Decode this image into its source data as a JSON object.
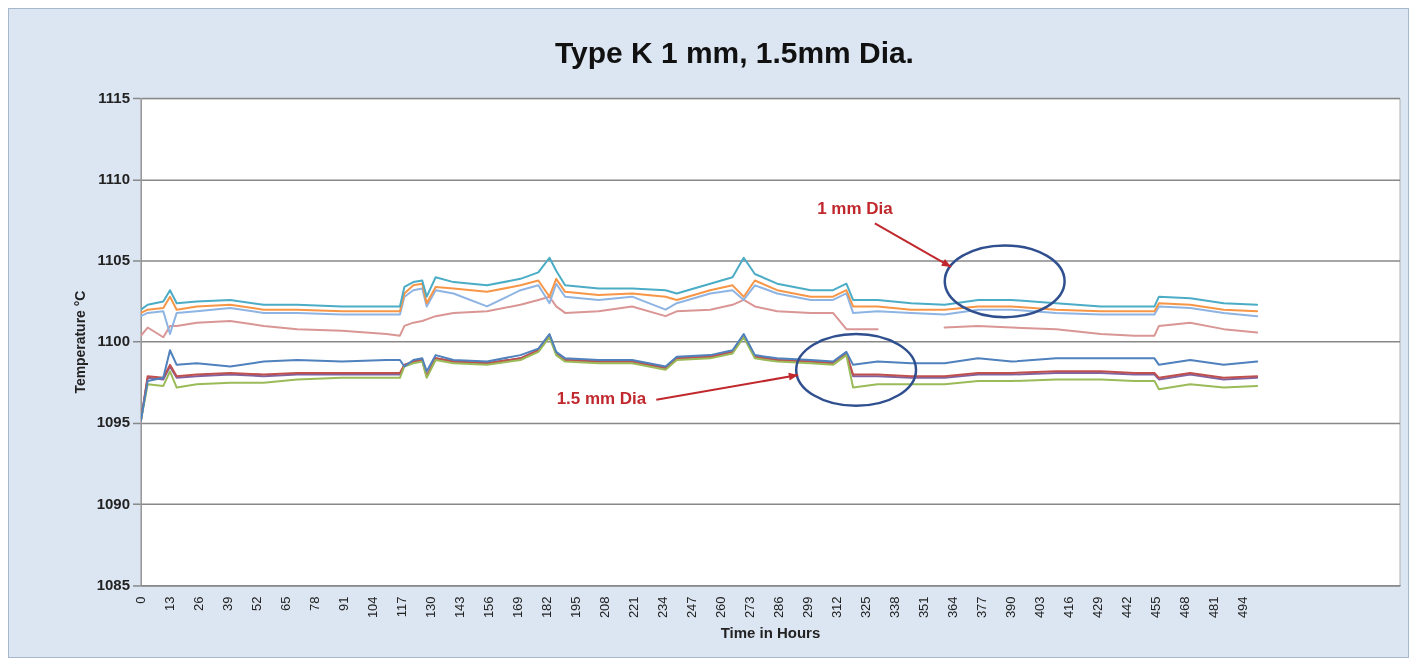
{
  "chart_data": {
    "type": "line",
    "title": "Type K 1 mm, 1.5mm Dia.",
    "xlabel": "Time in Hours",
    "ylabel": "Temperature °C",
    "x": [
      0,
      3,
      10,
      13,
      16,
      25,
      40,
      55,
      70,
      90,
      110,
      116,
      118,
      122,
      126,
      128,
      132,
      140,
      155,
      170,
      178,
      183,
      186,
      190,
      205,
      220,
      235,
      240,
      255,
      265,
      270,
      275,
      285,
      300,
      310,
      316,
      319,
      330,
      345,
      360,
      375,
      390,
      410,
      430,
      445,
      454,
      456,
      470,
      485,
      500
    ],
    "series": [
      {
        "color": "#4bacc6",
        "values": [
          1102.0,
          1102.3,
          1102.5,
          1103.2,
          1102.4,
          1102.5,
          1102.6,
          1102.3,
          1102.3,
          1102.2,
          1102.2,
          1102.2,
          1103.4,
          1103.7,
          1103.8,
          1102.8,
          1104.0,
          1103.7,
          1103.5,
          1103.9,
          1104.3,
          1105.2,
          1104.4,
          1103.5,
          1103.3,
          1103.3,
          1103.2,
          1103.0,
          1103.6,
          1104.0,
          1105.2,
          1104.2,
          1103.6,
          1103.2,
          1103.2,
          1103.6,
          1102.6,
          1102.6,
          1102.4,
          1102.3,
          1102.6,
          1102.6,
          1102.4,
          1102.2,
          1102.2,
          1102.2,
          1102.8,
          1102.7,
          1102.4,
          1102.3
        ]
      },
      {
        "color": "#f79646",
        "values": [
          1101.8,
          1102.0,
          1102.1,
          1102.8,
          1102.0,
          1102.2,
          1102.3,
          1102.0,
          1102.0,
          1101.9,
          1101.9,
          1101.9,
          1103.0,
          1103.5,
          1103.6,
          1102.4,
          1103.4,
          1103.3,
          1103.1,
          1103.5,
          1103.8,
          1102.8,
          1103.9,
          1103.1,
          1102.9,
          1103.0,
          1102.8,
          1102.6,
          1103.2,
          1103.5,
          1102.8,
          1103.8,
          1103.2,
          1102.8,
          1102.8,
          1103.2,
          1102.2,
          1102.2,
          1102.0,
          1102.0,
          1102.2,
          1102.2,
          1102.0,
          1101.9,
          1101.9,
          1101.9,
          1102.4,
          1102.3,
          1102.0,
          1101.9
        ]
      },
      {
        "color": "#8eb4e3",
        "values": [
          1101.6,
          1101.8,
          1101.9,
          1100.5,
          1101.8,
          1101.9,
          1102.1,
          1101.8,
          1101.8,
          1101.7,
          1101.7,
          1101.7,
          1102.8,
          1103.2,
          1103.3,
          1102.2,
          1103.2,
          1103.0,
          1102.2,
          1103.2,
          1103.5,
          1102.4,
          1103.6,
          1102.8,
          1102.6,
          1102.8,
          1102.0,
          1102.4,
          1103.0,
          1103.2,
          1102.6,
          1103.5,
          1103.0,
          1102.6,
          1102.6,
          1103.0,
          1101.8,
          1101.9,
          1101.8,
          1101.7,
          1102.0,
          1102.0,
          1101.8,
          1101.7,
          1101.7,
          1101.7,
          1102.2,
          1102.1,
          1101.8,
          1101.6
        ]
      },
      {
        "color": "#d99694",
        "values": [
          1100.4,
          1100.9,
          1100.3,
          1101.0,
          1101.0,
          1101.2,
          1101.3,
          1101.0,
          1100.8,
          1100.7,
          1100.5,
          1100.4,
          1101.0,
          1101.2,
          1101.3,
          1101.4,
          1101.6,
          1101.8,
          1101.9,
          1102.3,
          1102.6,
          1102.8,
          1102.2,
          1101.8,
          1101.9,
          1102.2,
          1101.6,
          1101.9,
          1102.0,
          1102.3,
          1102.6,
          1102.2,
          1101.9,
          1101.8,
          1101.8,
          1100.8,
          1100.8,
          1100.8,
          null,
          1100.9,
          1101.0,
          1100.9,
          1100.8,
          1100.5,
          1100.4,
          1100.4,
          1101.0,
          1101.2,
          1100.8,
          1100.6
        ]
      },
      {
        "color": "#4f81bd",
        "values": [
          1095.2,
          1097.6,
          1097.8,
          1099.5,
          1098.6,
          1098.7,
          1098.5,
          1098.8,
          1098.9,
          1098.8,
          1098.9,
          1098.9,
          1098.5,
          1098.9,
          1099.0,
          1098.2,
          1099.2,
          1098.9,
          1098.8,
          1099.2,
          1099.6,
          1100.5,
          1099.4,
          1099.0,
          1098.9,
          1098.9,
          1098.5,
          1099.1,
          1099.2,
          1099.5,
          1100.5,
          1099.2,
          1099.0,
          1098.9,
          1098.8,
          1099.4,
          1098.6,
          1098.8,
          1098.7,
          1098.7,
          1099.0,
          1098.8,
          1099.0,
          1099.0,
          1099.0,
          1099.0,
          1098.6,
          1098.9,
          1098.6,
          1098.8
        ]
      },
      {
        "color": "#9bbb59",
        "values": [
          1095.2,
          1097.4,
          1097.3,
          1098.2,
          1097.2,
          1097.4,
          1097.5,
          1097.5,
          1097.7,
          1097.8,
          1097.8,
          1097.8,
          1098.5,
          1098.7,
          1098.8,
          1097.8,
          1098.9,
          1098.7,
          1098.6,
          1098.9,
          1099.4,
          1100.3,
          1099.2,
          1098.8,
          1098.7,
          1098.7,
          1098.3,
          1098.9,
          1099.0,
          1099.3,
          1100.3,
          1099.0,
          1098.8,
          1098.7,
          1098.6,
          1099.2,
          1097.2,
          1097.4,
          1097.4,
          1097.4,
          1097.6,
          1097.6,
          1097.7,
          1097.7,
          1097.6,
          1097.6,
          1097.1,
          1097.4,
          1097.2,
          1097.3
        ]
      },
      {
        "color": "#c0504d",
        "values": [
          1095.2,
          1097.9,
          1097.8,
          1098.6,
          1097.9,
          1098.0,
          1098.1,
          1098.0,
          1098.1,
          1098.1,
          1098.1,
          1098.1,
          1098.6,
          1098.8,
          1098.9,
          1097.9,
          1099.0,
          1098.8,
          1098.7,
          1099.0,
          1099.5,
          1100.4,
          1099.3,
          1098.9,
          1098.8,
          1098.8,
          1098.4,
          1099.0,
          1099.1,
          1099.4,
          1100.4,
          1099.1,
          1098.9,
          1098.8,
          1098.7,
          1099.3,
          1098.0,
          1098.0,
          1097.9,
          1097.9,
          1098.1,
          1098.1,
          1098.2,
          1098.2,
          1098.1,
          1098.1,
          1097.8,
          1098.1,
          1097.8,
          1097.9
        ]
      },
      {
        "color": "#8064a2",
        "values": [
          1095.2,
          1097.8,
          1097.7,
          1098.5,
          1097.8,
          1097.9,
          1098.0,
          1097.9,
          1098.0,
          1098.0,
          1098.0,
          1098.0,
          1098.6,
          1098.8,
          1098.9,
          1097.9,
          1099.0,
          1098.8,
          1098.7,
          1099.0,
          1099.5,
          1100.4,
          1099.3,
          1098.9,
          1098.8,
          1098.8,
          1098.4,
          1099.0,
          1099.1,
          1099.4,
          1100.4,
          1099.1,
          1098.9,
          1098.8,
          1098.7,
          1099.3,
          1097.9,
          1097.9,
          1097.8,
          1097.8,
          1098.0,
          1098.0,
          1098.1,
          1098.1,
          1098.0,
          1098.0,
          1097.7,
          1098.0,
          1097.7,
          1097.8
        ]
      }
    ],
    "xlim": [
      0,
      564
    ],
    "xticks": [
      0,
      13,
      26,
      39,
      52,
      65,
      78,
      91,
      104,
      117,
      130,
      143,
      156,
      169,
      182,
      195,
      208,
      221,
      234,
      247,
      260,
      273,
      286,
      299,
      312,
      325,
      338,
      351,
      364,
      377,
      390,
      403,
      416,
      429,
      442,
      455,
      468,
      481,
      494
    ],
    "ylim": [
      1085,
      1115
    ],
    "yticks": [
      1085,
      1090,
      1095,
      1100,
      1105,
      1110,
      1115
    ],
    "grid": "y",
    "legend": false,
    "marker": "none",
    "line_style": "solid",
    "annotations": [
      "1 mm Dia",
      "1.5 mm Dia"
    ]
  }
}
